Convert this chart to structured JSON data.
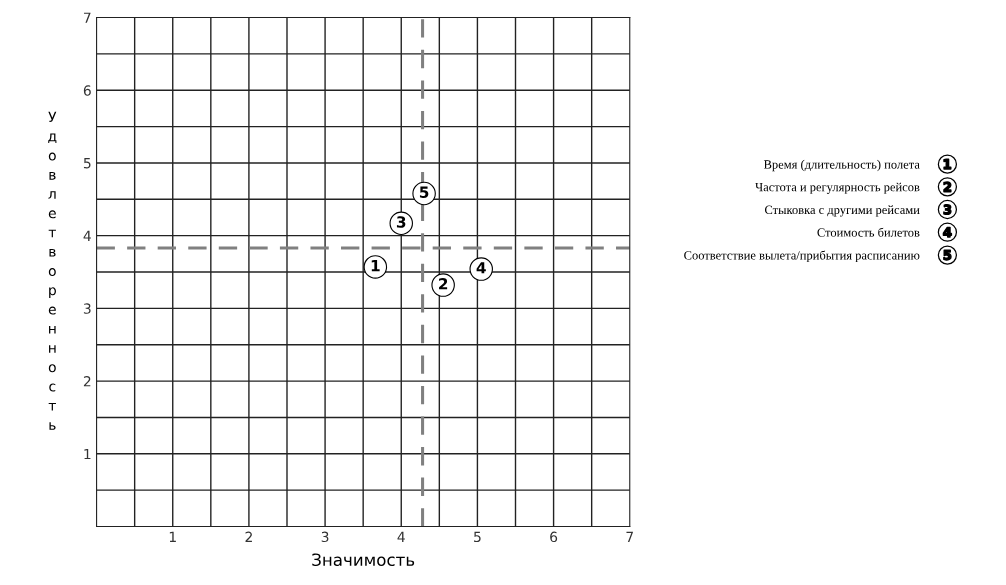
{
  "chart_data": {
    "type": "scatter",
    "xlabel": "Значимость",
    "ylabel": "Удовлетворенность",
    "xlim": [
      0,
      7
    ],
    "ylim": [
      0,
      7
    ],
    "xticks": [
      1,
      2,
      3,
      4,
      5,
      6,
      7
    ],
    "yticks": [
      1,
      2,
      3,
      4,
      5,
      6,
      7
    ],
    "grid": true,
    "legend": "right",
    "marker": "circle",
    "series": [
      {
        "name": "Время (длительность) полета",
        "color": "#000000",
        "x": [
          3.66
        ],
        "values": [
          3.57
        ]
      },
      {
        "name": "Частота и регулярность рейсов",
        "color": "#000000",
        "x": [
          4.55
        ],
        "values": [
          3.32
        ]
      },
      {
        "name": "Стыковка с другими рейсами",
        "color": "#000000",
        "x": [
          4.0
        ],
        "values": [
          4.17
        ]
      },
      {
        "name": "Стоимость билетов",
        "color": "#000000",
        "x": [
          5.05
        ],
        "values": [
          3.54
        ]
      },
      {
        "name": "Соответствие вылета/прибытия расписанию",
        "color": "#000000",
        "x": [
          4.3
        ],
        "values": [
          4.58
        ]
      }
    ],
    "annotations": [
      {
        "text": "1",
        "x": 3.66,
        "y": 3.57
      },
      {
        "text": "2",
        "x": 4.55,
        "y": 3.32
      },
      {
        "text": "3",
        "x": 4.0,
        "y": 4.17
      },
      {
        "text": "4",
        "x": 5.05,
        "y": 3.54
      },
      {
        "text": "5",
        "x": 4.3,
        "y": 4.58
      }
    ],
    "ref_lines": [
      {
        "axis": "x",
        "value": 4.28,
        "color": "#808080",
        "line_style": "dashed"
      },
      {
        "axis": "y",
        "value": 3.83,
        "color": "#808080",
        "line_style": "dashed"
      }
    ]
  }
}
